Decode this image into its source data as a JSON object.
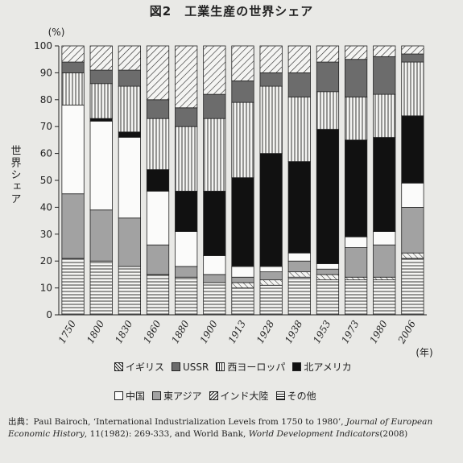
{
  "title": "図2　工業生産の世界シェア",
  "source": {
    "prefix": "出典：",
    "text1": "Paul Bairoch, ‘International Industrialization Levels from 1750 to 1980’, ",
    "journal": "Journal of European Economic History",
    "text2": ", 11(1982): 269-333, and World Bank, ",
    "wdi": "World Development Indicators",
    "text3": "(2008)"
  },
  "chart_data": {
    "type": "bar",
    "stacked": true,
    "ylabel": "世界シェア",
    "yunit": "(%)",
    "xunit": "(年)",
    "ylim": [
      0,
      100
    ],
    "yticks": [
      0,
      10,
      20,
      30,
      40,
      50,
      60,
      70,
      80,
      90,
      100
    ],
    "grid": false,
    "legend_position": "bottom",
    "categories": [
      "1750",
      "1800",
      "1830",
      "1860",
      "1880",
      "1900",
      "1913",
      "1928",
      "1938",
      "1953",
      "1973",
      "1980",
      "2006"
    ],
    "series": [
      {
        "name": "その他",
        "pattern": "hlines",
        "values": [
          21,
          20,
          18,
          15,
          14,
          12,
          10,
          11,
          14,
          13,
          13,
          13,
          21
        ]
      },
      {
        "name": "インド大陸",
        "pattern": "backslash",
        "values": [
          0,
          0,
          0,
          0,
          0,
          0,
          2,
          2,
          2,
          2,
          1,
          1,
          2
        ]
      },
      {
        "name": "東アジア",
        "pattern": "gray",
        "values": [
          24,
          19,
          18,
          11,
          4,
          3,
          2,
          3,
          4,
          2,
          11,
          12,
          17
        ]
      },
      {
        "name": "中国",
        "pattern": "white",
        "values": [
          33,
          33,
          30,
          20,
          13,
          7,
          4,
          2,
          3,
          2,
          4,
          5,
          9
        ]
      },
      {
        "name": "北アメリカ",
        "pattern": "black",
        "values": [
          0,
          1,
          2,
          8,
          15,
          24,
          33,
          42,
          34,
          50,
          36,
          35,
          25
        ]
      },
      {
        "name": "西ヨーロッパ",
        "pattern": "vlines",
        "values": [
          12,
          13,
          17,
          19,
          24,
          27,
          28,
          25,
          24,
          14,
          16,
          16,
          20
        ]
      },
      {
        "name": "USSR",
        "pattern": "darkgray",
        "values": [
          4,
          5,
          6,
          7,
          7,
          9,
          8,
          5,
          9,
          11,
          14,
          14,
          3
        ]
      },
      {
        "name": "イギリス",
        "pattern": "slash",
        "values": [
          6,
          9,
          9,
          20,
          23,
          18,
          13,
          10,
          10,
          6,
          5,
          4,
          3
        ]
      }
    ],
    "legend_rows": [
      [
        "イギリス",
        "USSR",
        "西ヨーロッパ",
        "北アメリカ"
      ],
      [
        "中国",
        "東アジア",
        "インド大陸",
        "その他"
      ]
    ]
  }
}
